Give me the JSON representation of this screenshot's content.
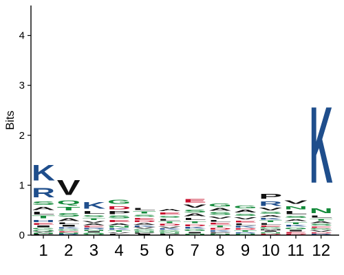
{
  "chart_data": {
    "type": "sequence-logo",
    "ylabel": "Bits",
    "ylim": [
      0,
      4.6
    ],
    "yticks": [
      0,
      1,
      2,
      3,
      4
    ],
    "categories": [
      "1",
      "2",
      "3",
      "4",
      "5",
      "6",
      "7",
      "8",
      "9",
      "10",
      "11",
      "12"
    ],
    "grid": false,
    "legend": "none",
    "colors": {
      "K": "#1f4e8c",
      "R": "#1f4e8c",
      "H": "#1f4e8c",
      "D": "#c8102e",
      "E": "#c8102e",
      "S": "#138a3a",
      "T": "#138a3a",
      "G": "#138a3a",
      "N": "#138a3a",
      "Q": "#138a3a",
      "Y": "#138a3a",
      "C": "#138a3a",
      "A": "#111111",
      "V": "#111111",
      "L": "#111111",
      "I": "#111111",
      "P": "#111111",
      "F": "#111111",
      "M": "#111111",
      "W": "#111111"
    },
    "positions": [
      {
        "position": "1",
        "letters": [
          {
            "aa": "K",
            "bits": 0.5
          },
          {
            "aa": "R",
            "bits": 0.3
          },
          {
            "aa": "S",
            "bits": 0.12
          },
          {
            "aa": "T",
            "bits": 0.08
          },
          {
            "aa": "A",
            "bits": 0.1
          },
          {
            "aa": "L",
            "bits": 0.08
          },
          {
            "aa": "H",
            "bits": 0.07
          },
          {
            "aa": "I",
            "bits": 0.05
          },
          {
            "aa": "E",
            "bits": 0.05
          },
          {
            "aa": "G",
            "bits": 0.04
          },
          {
            "aa": "N",
            "bits": 0.03
          },
          {
            "aa": "V",
            "bits": 0.03
          },
          {
            "aa": "Q",
            "bits": 0.03
          },
          {
            "aa": "P",
            "bits": 0.02
          }
        ]
      },
      {
        "position": "2",
        "letters": [
          {
            "aa": "V",
            "bits": 0.48
          },
          {
            "aa": "S",
            "bits": 0.12
          },
          {
            "aa": "T",
            "bits": 0.12
          },
          {
            "aa": "Q",
            "bits": 0.12
          },
          {
            "aa": "A",
            "bits": 0.08
          },
          {
            "aa": "L",
            "bits": 0.06
          },
          {
            "aa": "I",
            "bits": 0.05
          },
          {
            "aa": "G",
            "bits": 0.04
          },
          {
            "aa": "K",
            "bits": 0.04
          },
          {
            "aa": "N",
            "bits": 0.03
          },
          {
            "aa": "E",
            "bits": 0.03
          },
          {
            "aa": "R",
            "bits": 0.02
          }
        ]
      },
      {
        "position": "3",
        "letters": [
          {
            "aa": "K",
            "bits": 0.22
          },
          {
            "aa": "L",
            "bits": 0.08
          },
          {
            "aa": "T",
            "bits": 0.06
          },
          {
            "aa": "S",
            "bits": 0.06
          },
          {
            "aa": "A",
            "bits": 0.05
          },
          {
            "aa": "V",
            "bits": 0.05
          },
          {
            "aa": "R",
            "bits": 0.04
          },
          {
            "aa": "E",
            "bits": 0.04
          },
          {
            "aa": "G",
            "bits": 0.03
          },
          {
            "aa": "I",
            "bits": 0.03
          },
          {
            "aa": "N",
            "bits": 0.03
          },
          {
            "aa": "Q",
            "bits": 0.02
          }
        ]
      },
      {
        "position": "4",
        "letters": [
          {
            "aa": "G",
            "bits": 0.12
          },
          {
            "aa": "P",
            "bits": 0.1
          },
          {
            "aa": "D",
            "bits": 0.1
          },
          {
            "aa": "S",
            "bits": 0.08
          },
          {
            "aa": "E",
            "bits": 0.07
          },
          {
            "aa": "A",
            "bits": 0.06
          },
          {
            "aa": "N",
            "bits": 0.05
          },
          {
            "aa": "T",
            "bits": 0.04
          },
          {
            "aa": "K",
            "bits": 0.04
          },
          {
            "aa": "L",
            "bits": 0.03
          },
          {
            "aa": "V",
            "bits": 0.03
          }
        ]
      },
      {
        "position": "5",
        "letters": [
          {
            "aa": "T",
            "bits": 0.07
          },
          {
            "aa": "L",
            "bits": 0.07
          },
          {
            "aa": "E",
            "bits": 0.06
          },
          {
            "aa": "S",
            "bits": 0.06
          },
          {
            "aa": "A",
            "bits": 0.05
          },
          {
            "aa": "D",
            "bits": 0.05
          },
          {
            "aa": "G",
            "bits": 0.04
          },
          {
            "aa": "V",
            "bits": 0.04
          },
          {
            "aa": "K",
            "bits": 0.04
          },
          {
            "aa": "P",
            "bits": 0.03
          },
          {
            "aa": "N",
            "bits": 0.03
          },
          {
            "aa": "I",
            "bits": 0.02
          }
        ]
      },
      {
        "position": "6",
        "letters": [
          {
            "aa": "E",
            "bits": 0.07
          },
          {
            "aa": "A",
            "bits": 0.07
          },
          {
            "aa": "L",
            "bits": 0.06
          },
          {
            "aa": "S",
            "bits": 0.06
          },
          {
            "aa": "D",
            "bits": 0.05
          },
          {
            "aa": "T",
            "bits": 0.05
          },
          {
            "aa": "G",
            "bits": 0.04
          },
          {
            "aa": "K",
            "bits": 0.04
          },
          {
            "aa": "V",
            "bits": 0.04
          },
          {
            "aa": "P",
            "bits": 0.03
          },
          {
            "aa": "N",
            "bits": 0.03
          }
        ]
      },
      {
        "position": "7",
        "letters": [
          {
            "aa": "E",
            "bits": 0.12
          },
          {
            "aa": "V",
            "bits": 0.1
          },
          {
            "aa": "S",
            "bits": 0.09
          },
          {
            "aa": "A",
            "bits": 0.08
          },
          {
            "aa": "L",
            "bits": 0.07
          },
          {
            "aa": "D",
            "bits": 0.06
          },
          {
            "aa": "T",
            "bits": 0.06
          },
          {
            "aa": "G",
            "bits": 0.05
          },
          {
            "aa": "K",
            "bits": 0.05
          },
          {
            "aa": "I",
            "bits": 0.04
          },
          {
            "aa": "N",
            "bits": 0.03
          }
        ]
      },
      {
        "position": "8",
        "letters": [
          {
            "aa": "G",
            "bits": 0.1
          },
          {
            "aa": "S",
            "bits": 0.08
          },
          {
            "aa": "A",
            "bits": 0.08
          },
          {
            "aa": "V",
            "bits": 0.07
          },
          {
            "aa": "E",
            "bits": 0.06
          },
          {
            "aa": "L",
            "bits": 0.06
          },
          {
            "aa": "D",
            "bits": 0.05
          },
          {
            "aa": "T",
            "bits": 0.05
          },
          {
            "aa": "K",
            "bits": 0.04
          },
          {
            "aa": "N",
            "bits": 0.03
          },
          {
            "aa": "P",
            "bits": 0.03
          }
        ]
      },
      {
        "position": "9",
        "letters": [
          {
            "aa": "G",
            "bits": 0.09
          },
          {
            "aa": "A",
            "bits": 0.08
          },
          {
            "aa": "V",
            "bits": 0.07
          },
          {
            "aa": "S",
            "bits": 0.07
          },
          {
            "aa": "E",
            "bits": 0.06
          },
          {
            "aa": "K",
            "bits": 0.05
          },
          {
            "aa": "L",
            "bits": 0.05
          },
          {
            "aa": "T",
            "bits": 0.04
          },
          {
            "aa": "D",
            "bits": 0.04
          },
          {
            "aa": "N",
            "bits": 0.03
          },
          {
            "aa": "R",
            "bits": 0.03
          }
        ]
      },
      {
        "position": "10",
        "letters": [
          {
            "aa": "P",
            "bits": 0.16
          },
          {
            "aa": "R",
            "bits": 0.14
          },
          {
            "aa": "V",
            "bits": 0.08
          },
          {
            "aa": "S",
            "bits": 0.07
          },
          {
            "aa": "A",
            "bits": 0.06
          },
          {
            "aa": "L",
            "bits": 0.05
          },
          {
            "aa": "T",
            "bits": 0.05
          },
          {
            "aa": "K",
            "bits": 0.05
          },
          {
            "aa": "G",
            "bits": 0.04
          },
          {
            "aa": "E",
            "bits": 0.04
          },
          {
            "aa": "D",
            "bits": 0.03
          },
          {
            "aa": "N",
            "bits": 0.03
          },
          {
            "aa": "I",
            "bits": 0.03
          },
          {
            "aa": "M",
            "bits": 0.03
          }
        ]
      },
      {
        "position": "11",
        "letters": [
          {
            "aa": "V",
            "bits": 0.12
          },
          {
            "aa": "L",
            "bits": 0.1
          },
          {
            "aa": "N",
            "bits": 0.1
          },
          {
            "aa": "S",
            "bits": 0.07
          },
          {
            "aa": "T",
            "bits": 0.06
          },
          {
            "aa": "A",
            "bits": 0.06
          },
          {
            "aa": "G",
            "bits": 0.05
          },
          {
            "aa": "K",
            "bits": 0.05
          },
          {
            "aa": "E",
            "bits": 0.04
          },
          {
            "aa": "I",
            "bits": 0.04
          },
          {
            "aa": "D",
            "bits": 0.03
          }
        ]
      },
      {
        "position": "12",
        "letters": [
          {
            "aa": "K",
            "bits": 2.45
          },
          {
            "aa": "N",
            "bits": 0.16
          },
          {
            "aa": "L",
            "bits": 0.07
          },
          {
            "aa": "T",
            "bits": 0.06
          },
          {
            "aa": "S",
            "bits": 0.05
          },
          {
            "aa": "A",
            "bits": 0.05
          },
          {
            "aa": "V",
            "bits": 0.04
          },
          {
            "aa": "G",
            "bits": 0.04
          },
          {
            "aa": "E",
            "bits": 0.04
          },
          {
            "aa": "R",
            "bits": 0.03
          },
          {
            "aa": "D",
            "bits": 0.03
          }
        ]
      }
    ]
  }
}
